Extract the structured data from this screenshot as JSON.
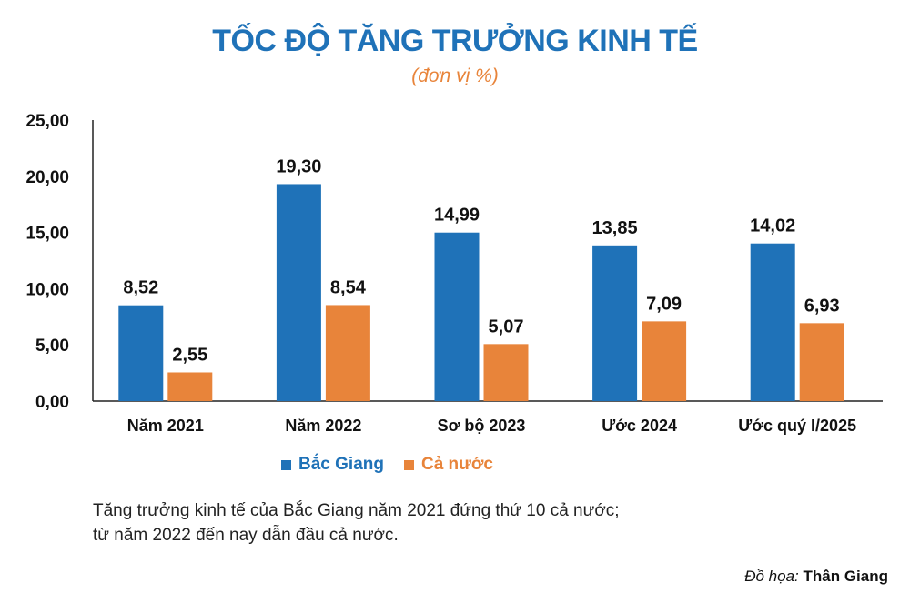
{
  "colors": {
    "title": "#1f72b8",
    "subtitle": "#e8843a",
    "bac_giang": "#1f72b8",
    "ca_nuoc": "#e8843a"
  },
  "chart_data": {
    "type": "bar",
    "title": "TỐC ĐỘ TĂNG TRƯỞNG KINH TẾ",
    "subtitle": "(đơn vị %)",
    "categories": [
      "Năm 2021",
      "Năm 2022",
      "Sơ bộ 2023",
      "Ước 2024",
      "Ước quý I/2025"
    ],
    "series": [
      {
        "name": "Bắc Giang",
        "values": [
          8.52,
          19.3,
          14.99,
          13.85,
          14.02
        ],
        "labels": [
          "8,52",
          "19,30",
          "14,99",
          "13,85",
          "14,02"
        ]
      },
      {
        "name": "Cả nước",
        "values": [
          2.55,
          8.54,
          5.07,
          7.09,
          6.93
        ],
        "labels": [
          "2,55",
          "8,54",
          "5,07",
          "7,09",
          "6,93"
        ]
      }
    ],
    "yticks": [
      "0,00",
      "5,00",
      "10,00",
      "15,00",
      "20,00",
      "25,00"
    ],
    "ylim": [
      0,
      25
    ],
    "legend_position": "bottom-left"
  },
  "note": {
    "line1": "Tăng trưởng kinh tế của Bắc Giang năm 2021 đứng thứ 10 cả nước;",
    "line2": "từ năm 2022 đến nay dẫn đầu cả nước."
  },
  "credit": {
    "label": "Đồ họa:",
    "author": "Thân Giang"
  }
}
